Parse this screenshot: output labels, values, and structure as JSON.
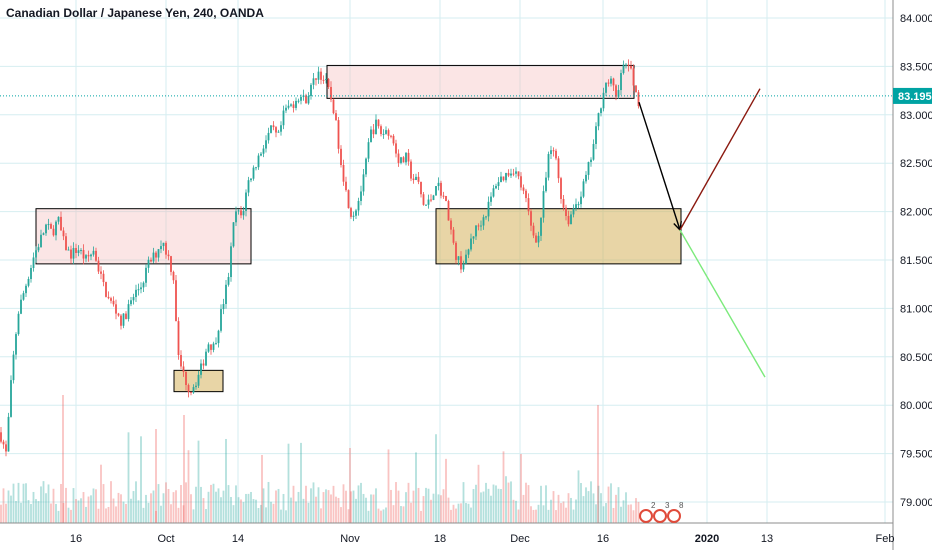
{
  "chart_data": {
    "type": "candlestick",
    "title": "Canadian Dollar / Japanese Yen, 240, OANDA",
    "ylim": [
      78.85,
      84.15
    ],
    "y_ticks": [
      "84.000",
      "83.500",
      "83.000",
      "82.500",
      "82.000",
      "81.500",
      "81.000",
      "80.500",
      "80.000",
      "79.500",
      "79.000"
    ],
    "x_ticks": [
      {
        "label": "16",
        "bold": false
      },
      {
        "label": "Oct",
        "bold": false
      },
      {
        "label": "14",
        "bold": false
      },
      {
        "label": "Nov",
        "bold": false
      },
      {
        "label": "18",
        "bold": false
      },
      {
        "label": "Dec",
        "bold": false
      },
      {
        "label": "16",
        "bold": false
      },
      {
        "label": "2020",
        "bold": true
      },
      {
        "label": "13",
        "bold": false
      },
      {
        "label": "Feb",
        "bold": false
      }
    ],
    "current_price": {
      "value": 83.195,
      "label": "83.195"
    },
    "price_path": [
      [
        0,
        79.72
      ],
      [
        6,
        79.5
      ],
      [
        12,
        80.35
      ],
      [
        18,
        80.95
      ],
      [
        26,
        81.25
      ],
      [
        34,
        81.55
      ],
      [
        40,
        81.7
      ],
      [
        46,
        81.85
      ],
      [
        52,
        81.78
      ],
      [
        58,
        81.92
      ],
      [
        63,
        81.7
      ],
      [
        70,
        81.55
      ],
      [
        78,
        81.62
      ],
      [
        86,
        81.5
      ],
      [
        94,
        81.6
      ],
      [
        100,
        81.35
      ],
      [
        108,
        81.1
      ],
      [
        115,
        81.0
      ],
      [
        122,
        80.85
      ],
      [
        128,
        81.0
      ],
      [
        135,
        81.15
      ],
      [
        142,
        81.25
      ],
      [
        148,
        81.45
      ],
      [
        155,
        81.55
      ],
      [
        162,
        81.7
      ],
      [
        168,
        81.55
      ],
      [
        174,
        81.3
      ],
      [
        178,
        80.5
      ],
      [
        184,
        80.3
      ],
      [
        190,
        80.15
      ],
      [
        196,
        80.25
      ],
      [
        202,
        80.4
      ],
      [
        208,
        80.65
      ],
      [
        214,
        80.6
      ],
      [
        220,
        80.9
      ],
      [
        228,
        81.3
      ],
      [
        235,
        82.0
      ],
      [
        242,
        81.95
      ],
      [
        248,
        82.3
      ],
      [
        256,
        82.5
      ],
      [
        264,
        82.7
      ],
      [
        272,
        82.85
      ],
      [
        278,
        82.75
      ],
      [
        285,
        83.05
      ],
      [
        292,
        83.1
      ],
      [
        298,
        83.2
      ],
      [
        305,
        83.15
      ],
      [
        312,
        83.3
      ],
      [
        318,
        83.45
      ],
      [
        325,
        83.35
      ],
      [
        333,
        83.1
      ],
      [
        340,
        82.6
      ],
      [
        346,
        82.2
      ],
      [
        352,
        81.95
      ],
      [
        358,
        82.1
      ],
      [
        364,
        82.35
      ],
      [
        370,
        82.8
      ],
      [
        376,
        82.9
      ],
      [
        382,
        82.8
      ],
      [
        388,
        82.85
      ],
      [
        394,
        82.7
      ],
      [
        400,
        82.5
      ],
      [
        406,
        82.55
      ],
      [
        412,
        82.35
      ],
      [
        418,
        82.3
      ],
      [
        424,
        82.05
      ],
      [
        430,
        82.1
      ],
      [
        436,
        82.3
      ],
      [
        442,
        82.2
      ],
      [
        448,
        82.0
      ],
      [
        454,
        81.6
      ],
      [
        460,
        81.45
      ],
      [
        466,
        81.5
      ],
      [
        472,
        81.75
      ],
      [
        478,
        81.85
      ],
      [
        484,
        81.95
      ],
      [
        490,
        82.1
      ],
      [
        496,
        82.3
      ],
      [
        502,
        82.35
      ],
      [
        508,
        82.4
      ],
      [
        514,
        82.45
      ],
      [
        520,
        82.3
      ],
      [
        526,
        82.1
      ],
      [
        532,
        81.8
      ],
      [
        538,
        81.7
      ],
      [
        544,
        82.2
      ],
      [
        550,
        82.65
      ],
      [
        556,
        82.55
      ],
      [
        562,
        82.1
      ],
      [
        568,
        81.9
      ],
      [
        574,
        82.05
      ],
      [
        580,
        82.15
      ],
      [
        586,
        82.35
      ],
      [
        592,
        82.6
      ],
      [
        598,
        82.95
      ],
      [
        604,
        83.3
      ],
      [
        610,
        83.35
      ],
      [
        616,
        83.2
      ],
      [
        622,
        83.45
      ],
      [
        628,
        83.55
      ],
      [
        634,
        83.3
      ],
      [
        640,
        83.1
      ]
    ],
    "annotations": [
      {
        "type": "zone",
        "style": "resistance",
        "x1": 36,
        "x2": 251,
        "y1": 82.03,
        "y2": 81.46
      },
      {
        "type": "zone",
        "style": "support",
        "x1": 174,
        "x2": 223,
        "y1": 80.36,
        "y2": 80.14
      },
      {
        "type": "zone",
        "style": "resistance",
        "x1": 327,
        "x2": 634,
        "y1": 83.51,
        "y2": 83.17
      },
      {
        "type": "zone",
        "style": "support",
        "x1": 436,
        "x2": 681,
        "y1": 82.03,
        "y2": 81.46
      },
      {
        "type": "arrow",
        "color": "#000000",
        "from": [
          639,
          83.13
        ],
        "to": [
          680,
          81.81
        ]
      },
      {
        "type": "line",
        "color": "#8b1a10",
        "from": [
          680,
          81.81
        ],
        "to": [
          760,
          83.27
        ]
      },
      {
        "type": "line",
        "color": "#7cea7c",
        "from": [
          680,
          81.81
        ],
        "to": [
          765,
          80.29
        ]
      }
    ],
    "events_labels": [
      "2",
      "3",
      "8"
    ]
  }
}
